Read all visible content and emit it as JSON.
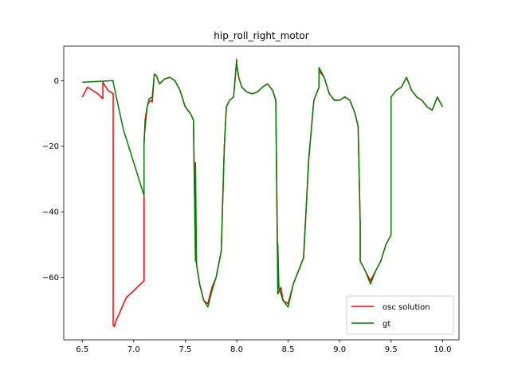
{
  "chart_data": {
    "type": "line",
    "title": "hip_roll_right_motor",
    "xlabel": "",
    "ylabel": "",
    "xlim": [
      6.32,
      10.16
    ],
    "ylim": [
      -79,
      10.5
    ],
    "xticks": [
      6.5,
      7.0,
      7.5,
      8.0,
      8.5,
      9.0,
      9.5,
      10.0
    ],
    "xtick_labels": [
      "6.5",
      "7.0",
      "7.5",
      "8.0",
      "8.5",
      "9.0",
      "9.5",
      "10.0"
    ],
    "yticks": [
      0,
      -20,
      -40,
      -60
    ],
    "ytick_labels": [
      "0",
      "−20",
      "−40",
      "−60"
    ],
    "grid": false,
    "legend": {
      "placement": "lower-right",
      "entries": [
        "osc solution",
        "gt"
      ]
    },
    "series": [
      {
        "name": "osc solution",
        "color": "#ff0000",
        "x": [
          6.5,
          6.55,
          6.6,
          6.65,
          6.7,
          6.7,
          6.72,
          6.75,
          6.8,
          6.8,
          6.81,
          6.83,
          6.86,
          6.9,
          6.93,
          6.95,
          7.0,
          7.05,
          7.1,
          7.1,
          7.11,
          7.13,
          7.15,
          7.17,
          7.18,
          7.2,
          7.22,
          7.25,
          7.3,
          7.35,
          7.4,
          7.45,
          7.5,
          7.55,
          7.58,
          7.6,
          7.6,
          7.61,
          7.62,
          7.64,
          7.68,
          7.72,
          7.76,
          7.8,
          7.85,
          7.88,
          7.9,
          7.93,
          7.97,
          8.0,
          8.0,
          8.02,
          8.05,
          8.1,
          8.15,
          8.2,
          8.25,
          8.3,
          8.35,
          8.38,
          8.4,
          8.4,
          8.43,
          8.45,
          8.5,
          8.55,
          8.6,
          8.65,
          8.7,
          8.75,
          8.8,
          8.8,
          8.85,
          8.9,
          8.95,
          9.0,
          9.05,
          9.1,
          9.15,
          9.18,
          9.2,
          9.2,
          9.25,
          9.3,
          9.35,
          9.4,
          9.45,
          9.5,
          9.5,
          9.55,
          9.6,
          9.65,
          9.7,
          9.75,
          9.8,
          9.85,
          9.9,
          9.95,
          10.0
        ],
        "y": [
          -5,
          -2,
          -3,
          -4,
          -5.5,
          -0.5,
          -1.5,
          -3,
          -4,
          -74.5,
          -75,
          -73,
          -71,
          -68,
          -66,
          -65.5,
          -64,
          -62.5,
          -61,
          -20,
          -12,
          -8,
          -6.5,
          -6,
          -6.5,
          2,
          1.5,
          -1,
          0.5,
          1,
          0,
          -3,
          -8,
          -10,
          -12,
          -55,
          -52,
          -56,
          -58,
          -62,
          -67,
          -68,
          -63,
          -60,
          -52,
          -20,
          -8,
          -6,
          -5,
          6.5,
          5,
          1,
          -2,
          -3.5,
          -4,
          -3.5,
          -2,
          -1,
          -3,
          -6,
          -62,
          -65,
          -63,
          -67,
          -68,
          -62,
          -58,
          -54,
          -24,
          -6,
          -2,
          3,
          1,
          -4,
          -6,
          -6,
          -5,
          -6,
          -10,
          -14,
          -44,
          -55,
          -58,
          -61,
          -58,
          -55,
          -50,
          -47,
          -5,
          -3,
          -2,
          1,
          -3,
          -5,
          -6,
          -8,
          -9,
          -5,
          -8
        ]
      },
      {
        "name": "gt",
        "color": "#008000",
        "x": [
          6.5,
          6.8,
          6.8,
          6.9,
          7.0,
          7.1,
          7.1,
          7.13,
          7.15,
          7.18,
          7.2,
          7.22,
          7.25,
          7.3,
          7.35,
          7.4,
          7.45,
          7.5,
          7.55,
          7.58,
          7.6,
          7.6,
          7.61,
          7.62,
          7.64,
          7.68,
          7.72,
          7.76,
          7.8,
          7.85,
          7.88,
          7.9,
          7.93,
          7.97,
          8.0,
          8.0,
          8.02,
          8.05,
          8.1,
          8.15,
          8.2,
          8.25,
          8.3,
          8.35,
          8.38,
          8.4,
          8.4,
          8.41,
          8.42,
          8.45,
          8.5,
          8.55,
          8.6,
          8.65,
          8.7,
          8.75,
          8.8,
          8.8,
          8.85,
          8.9,
          8.95,
          9.0,
          9.05,
          9.1,
          9.15,
          9.18,
          9.2,
          9.2,
          9.25,
          9.3,
          9.35,
          9.4,
          9.45,
          9.5,
          9.5,
          9.55,
          9.6,
          9.65,
          9.7,
          9.75,
          9.8,
          9.85,
          9.9,
          9.95,
          10.0
        ],
        "y": [
          -0.5,
          0,
          -0.5,
          -15,
          -25,
          -35,
          -18,
          -8,
          -5.5,
          -5,
          2,
          1.5,
          -1,
          0.5,
          1,
          0,
          -3,
          -8,
          -10,
          -12,
          -55,
          -25,
          -56,
          -58,
          -62,
          -67,
          -69,
          -64,
          -60,
          -52,
          -20,
          -8,
          -6,
          -5,
          6,
          5,
          1,
          -2,
          -3.5,
          -4,
          -3.5,
          -2,
          -1,
          -3,
          -6,
          -65,
          -50,
          -63,
          -64,
          -67,
          -69,
          -62,
          -58,
          -54,
          -24,
          -6,
          -2,
          4,
          1,
          -4,
          -6,
          -6,
          -5,
          -6,
          -10,
          -14,
          -43,
          -55,
          -58,
          -62,
          -58,
          -55,
          -50,
          -47,
          -5,
          -3,
          -2,
          1,
          -3,
          -5,
          -6,
          -8,
          -9,
          -5,
          -8
        ]
      }
    ]
  }
}
